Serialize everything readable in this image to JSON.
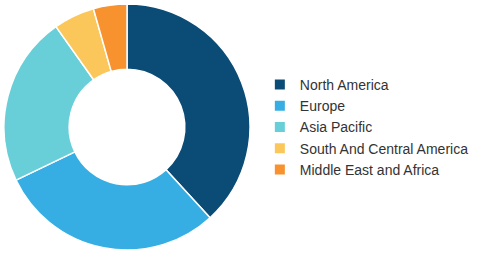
{
  "chart_data": {
    "type": "pie",
    "categories": [
      "North America",
      "Europe",
      "Asia Pacific",
      "South And Central America",
      "Middle East and Africa"
    ],
    "values": [
      38.2,
      29.7,
      22.3,
      5.4,
      4.4
    ],
    "colors": [
      "#0b4c77",
      "#36aee3",
      "#68cfd8",
      "#fcc75a",
      "#f7922e"
    ],
    "legend": "right"
  }
}
